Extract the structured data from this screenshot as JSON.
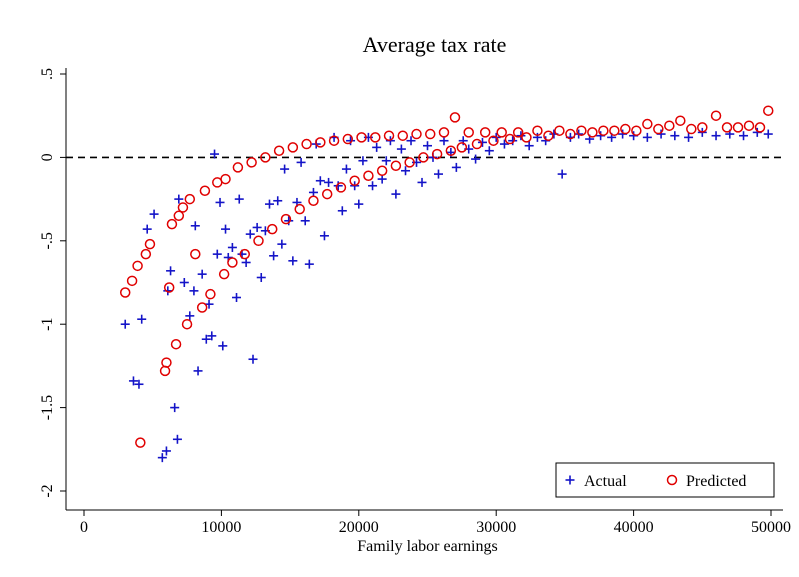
{
  "chart_data": {
    "type": "scatter",
    "title": "Average tax rate",
    "xlabel": "Family labor earnings",
    "ylabel": "",
    "xlim": [
      -5000,
      50500
    ],
    "ylim": [
      -2.05,
      0.5
    ],
    "xticks": [
      0,
      10000,
      20000,
      30000,
      40000,
      50000
    ],
    "xtick_labels": [
      "0",
      "10000",
      "20000",
      "30000",
      "40000",
      "50000"
    ],
    "yticks": [
      0.5,
      0,
      -0.5,
      -1,
      -1.5,
      -2
    ],
    "ytick_labels": [
      ".5",
      "0",
      "-.5",
      "-1",
      "-1.5",
      "-2"
    ],
    "reference_line": {
      "y": 0,
      "style": "dashed"
    },
    "grid": false,
    "legend_position": "bottom-right",
    "series": [
      {
        "name": "Actual",
        "marker": "plus",
        "color": "#1414c8",
        "points": [
          [
            3000,
            -1.0
          ],
          [
            3600,
            -1.34
          ],
          [
            4000,
            -1.36
          ],
          [
            4200,
            -0.97
          ],
          [
            4600,
            -0.43
          ],
          [
            5100,
            -0.34
          ],
          [
            5700,
            -1.8
          ],
          [
            6000,
            -1.76
          ],
          [
            6100,
            -0.8
          ],
          [
            6300,
            -0.68
          ],
          [
            6600,
            -1.5
          ],
          [
            6800,
            -1.69
          ],
          [
            6900,
            -0.25
          ],
          [
            7300,
            -0.75
          ],
          [
            7700,
            -0.95
          ],
          [
            8000,
            -0.8
          ],
          [
            8100,
            -0.41
          ],
          [
            8300,
            -1.28
          ],
          [
            8600,
            -0.7
          ],
          [
            8900,
            -1.09
          ],
          [
            9100,
            -0.88
          ],
          [
            9300,
            -1.07
          ],
          [
            9500,
            0.02
          ],
          [
            9700,
            -0.58
          ],
          [
            9900,
            -0.27
          ],
          [
            10100,
            -1.13
          ],
          [
            10300,
            -0.43
          ],
          [
            10500,
            -0.6
          ],
          [
            10800,
            -0.54
          ],
          [
            11100,
            -0.84
          ],
          [
            11300,
            -0.25
          ],
          [
            11500,
            -0.58
          ],
          [
            11800,
            -0.63
          ],
          [
            12100,
            -0.46
          ],
          [
            12300,
            -1.21
          ],
          [
            12600,
            -0.42
          ],
          [
            12900,
            -0.72
          ],
          [
            13200,
            -0.44
          ],
          [
            13500,
            -0.28
          ],
          [
            13800,
            -0.59
          ],
          [
            14100,
            -0.26
          ],
          [
            14400,
            -0.52
          ],
          [
            14600,
            -0.07
          ],
          [
            14900,
            -0.38
          ],
          [
            15200,
            -0.62
          ],
          [
            15500,
            -0.27
          ],
          [
            15800,
            -0.03
          ],
          [
            16100,
            -0.38
          ],
          [
            16400,
            -0.64
          ],
          [
            16700,
            -0.21
          ],
          [
            16900,
            0.08
          ],
          [
            17200,
            -0.14
          ],
          [
            17500,
            -0.47
          ],
          [
            17800,
            -0.15
          ],
          [
            18200,
            0.12
          ],
          [
            18500,
            -0.17
          ],
          [
            18800,
            -0.32
          ],
          [
            19100,
            -0.07
          ],
          [
            19400,
            0.1
          ],
          [
            19700,
            -0.17
          ],
          [
            20000,
            -0.28
          ],
          [
            20300,
            -0.02
          ],
          [
            20700,
            0.12
          ],
          [
            21000,
            -0.17
          ],
          [
            21300,
            0.06
          ],
          [
            21700,
            -0.13
          ],
          [
            22000,
            -0.02
          ],
          [
            22300,
            0.1
          ],
          [
            22700,
            -0.22
          ],
          [
            23100,
            0.05
          ],
          [
            23400,
            -0.08
          ],
          [
            23800,
            0.1
          ],
          [
            24200,
            -0.03
          ],
          [
            24600,
            -0.15
          ],
          [
            25000,
            0.07
          ],
          [
            25400,
            0.0
          ],
          [
            25800,
            -0.1
          ],
          [
            26200,
            0.1
          ],
          [
            26700,
            0.03
          ],
          [
            27100,
            -0.06
          ],
          [
            27600,
            0.1
          ],
          [
            28000,
            0.05
          ],
          [
            28500,
            -0.01
          ],
          [
            29000,
            0.09
          ],
          [
            29500,
            0.04
          ],
          [
            30000,
            0.12
          ],
          [
            30600,
            0.08
          ],
          [
            31200,
            0.1
          ],
          [
            31800,
            0.13
          ],
          [
            32400,
            0.07
          ],
          [
            33000,
            0.12
          ],
          [
            33600,
            0.1
          ],
          [
            34200,
            0.14
          ],
          [
            34800,
            -0.1
          ],
          [
            35400,
            0.12
          ],
          [
            36000,
            0.14
          ],
          [
            36800,
            0.11
          ],
          [
            37600,
            0.13
          ],
          [
            38400,
            0.12
          ],
          [
            39200,
            0.14
          ],
          [
            40000,
            0.13
          ],
          [
            41000,
            0.12
          ],
          [
            42000,
            0.14
          ],
          [
            43000,
            0.13
          ],
          [
            44000,
            0.12
          ],
          [
            45000,
            0.15
          ],
          [
            46000,
            0.13
          ],
          [
            47000,
            0.14
          ],
          [
            48000,
            0.13
          ],
          [
            49000,
            0.15
          ],
          [
            49800,
            0.14
          ]
        ]
      },
      {
        "name": "Predicted",
        "marker": "circle",
        "color": "#e00000",
        "points": [
          [
            3000,
            -0.81
          ],
          [
            3500,
            -0.74
          ],
          [
            3900,
            -0.65
          ],
          [
            4100,
            -1.71
          ],
          [
            4500,
            -0.58
          ],
          [
            4800,
            -0.52
          ],
          [
            5900,
            -1.28
          ],
          [
            6000,
            -1.23
          ],
          [
            6200,
            -0.78
          ],
          [
            6400,
            -0.4
          ],
          [
            6700,
            -1.12
          ],
          [
            6900,
            -0.35
          ],
          [
            7200,
            -0.3
          ],
          [
            7500,
            -1.0
          ],
          [
            7700,
            -0.25
          ],
          [
            8100,
            -0.58
          ],
          [
            8600,
            -0.9
          ],
          [
            8800,
            -0.2
          ],
          [
            9200,
            -0.82
          ],
          [
            9700,
            -0.15
          ],
          [
            10200,
            -0.7
          ],
          [
            10300,
            -0.13
          ],
          [
            10800,
            -0.63
          ],
          [
            11200,
            -0.06
          ],
          [
            11700,
            -0.58
          ],
          [
            12200,
            -0.03
          ],
          [
            12700,
            -0.5
          ],
          [
            13200,
            0.0
          ],
          [
            13700,
            -0.43
          ],
          [
            14200,
            0.04
          ],
          [
            14700,
            -0.37
          ],
          [
            15200,
            0.06
          ],
          [
            15700,
            -0.31
          ],
          [
            16200,
            0.08
          ],
          [
            16700,
            -0.26
          ],
          [
            17200,
            0.09
          ],
          [
            17700,
            -0.22
          ],
          [
            18200,
            0.1
          ],
          [
            18700,
            -0.18
          ],
          [
            19200,
            0.11
          ],
          [
            19700,
            -0.14
          ],
          [
            20200,
            0.12
          ],
          [
            20700,
            -0.11
          ],
          [
            21200,
            0.12
          ],
          [
            21700,
            -0.08
          ],
          [
            22200,
            0.13
          ],
          [
            22700,
            -0.05
          ],
          [
            23200,
            0.13
          ],
          [
            23700,
            -0.03
          ],
          [
            24200,
            0.14
          ],
          [
            24700,
            0.0
          ],
          [
            25200,
            0.14
          ],
          [
            25700,
            0.02
          ],
          [
            26200,
            0.15
          ],
          [
            26700,
            0.04
          ],
          [
            27000,
            0.24
          ],
          [
            27500,
            0.06
          ],
          [
            28000,
            0.15
          ],
          [
            28600,
            0.08
          ],
          [
            29200,
            0.15
          ],
          [
            29800,
            0.1
          ],
          [
            30400,
            0.15
          ],
          [
            31000,
            0.11
          ],
          [
            31600,
            0.15
          ],
          [
            32200,
            0.12
          ],
          [
            33000,
            0.16
          ],
          [
            33800,
            0.13
          ],
          [
            34600,
            0.16
          ],
          [
            35400,
            0.14
          ],
          [
            36200,
            0.16
          ],
          [
            37000,
            0.15
          ],
          [
            37800,
            0.16
          ],
          [
            38600,
            0.16
          ],
          [
            39400,
            0.17
          ],
          [
            40200,
            0.16
          ],
          [
            41000,
            0.2
          ],
          [
            41800,
            0.17
          ],
          [
            42600,
            0.19
          ],
          [
            43400,
            0.22
          ],
          [
            44200,
            0.17
          ],
          [
            45000,
            0.18
          ],
          [
            46000,
            0.25
          ],
          [
            46800,
            0.18
          ],
          [
            47600,
            0.18
          ],
          [
            48400,
            0.19
          ],
          [
            49200,
            0.18
          ],
          [
            49800,
            0.28
          ]
        ]
      }
    ]
  }
}
